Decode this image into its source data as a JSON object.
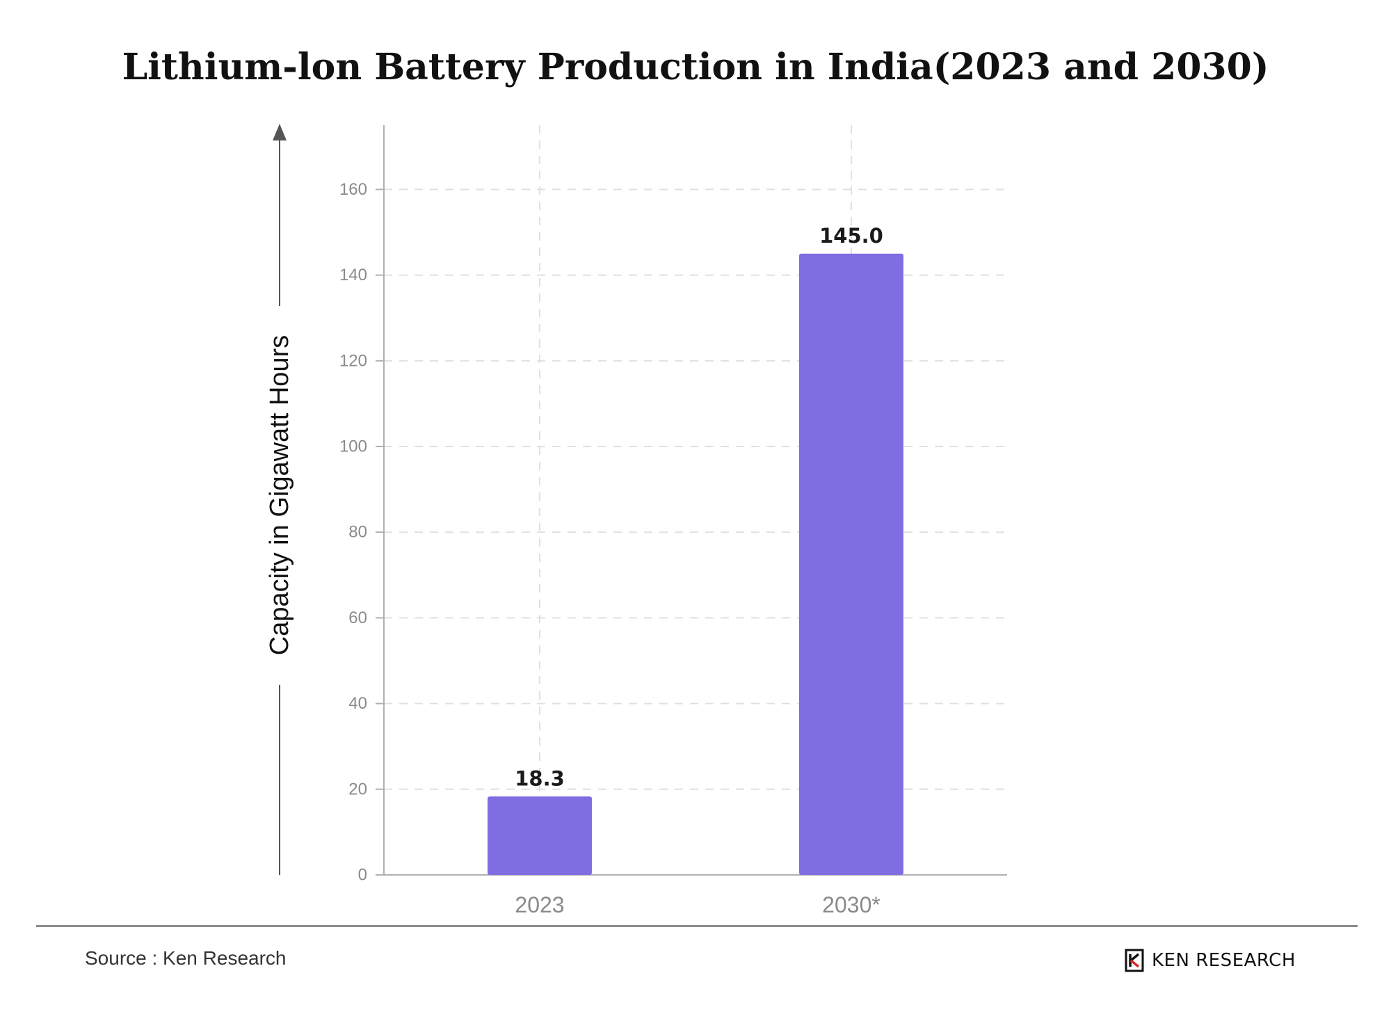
{
  "chart_data": {
    "type": "bar",
    "title": "Lithium-lon Battery Production in India(2023 and 2030)",
    "ylabel": "Capacity in Gigawatt Hours",
    "xlabel": "",
    "categories": [
      "2023",
      "2030*"
    ],
    "values": [
      18.3,
      145.0
    ],
    "value_labels": [
      "18.3",
      "145.0"
    ],
    "ylim": [
      0,
      175
    ],
    "yticks": [
      0,
      20,
      40,
      60,
      80,
      100,
      120,
      140,
      160
    ],
    "grid": true,
    "bar_color": "#7f6de2",
    "grid_color": "#e0e0e0",
    "axis_color": "#b0b0b0"
  },
  "footer": {
    "source": "Source : Ken Research",
    "brand_name": "KEN RESEARCH",
    "brand_logo": "ken-research-k-logo"
  }
}
